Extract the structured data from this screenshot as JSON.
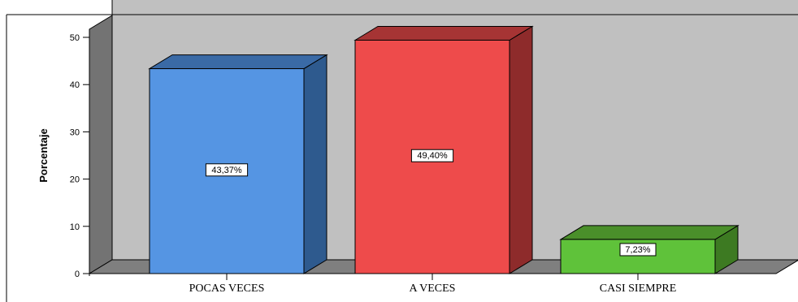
{
  "chart_data": {
    "type": "bar",
    "variant": "3d",
    "categories": [
      "POCAS VECES",
      "A VECES",
      "CASI SIEMPRE"
    ],
    "values": [
      43.37,
      49.4,
      7.23
    ],
    "data_labels": [
      "43,37%",
      "49,40%",
      "7,23%"
    ],
    "ylabel": "Porcentaje",
    "ylim": [
      0,
      50
    ],
    "yticks": [
      0,
      10,
      20,
      30,
      40,
      50
    ],
    "grid": false,
    "legend": "none",
    "colors": {
      "front": [
        "#5595e3",
        "#ee4b4b",
        "#5fc23a"
      ],
      "side": [
        "#2e5a8e",
        "#8e2b2b",
        "#3d7a22"
      ],
      "top": [
        "#3a6aa6",
        "#a63434",
        "#4a8f2a"
      ],
      "back_wall": "#c0c0c0",
      "side_wall": "#737373",
      "floor": "#7f7f7f"
    }
  }
}
